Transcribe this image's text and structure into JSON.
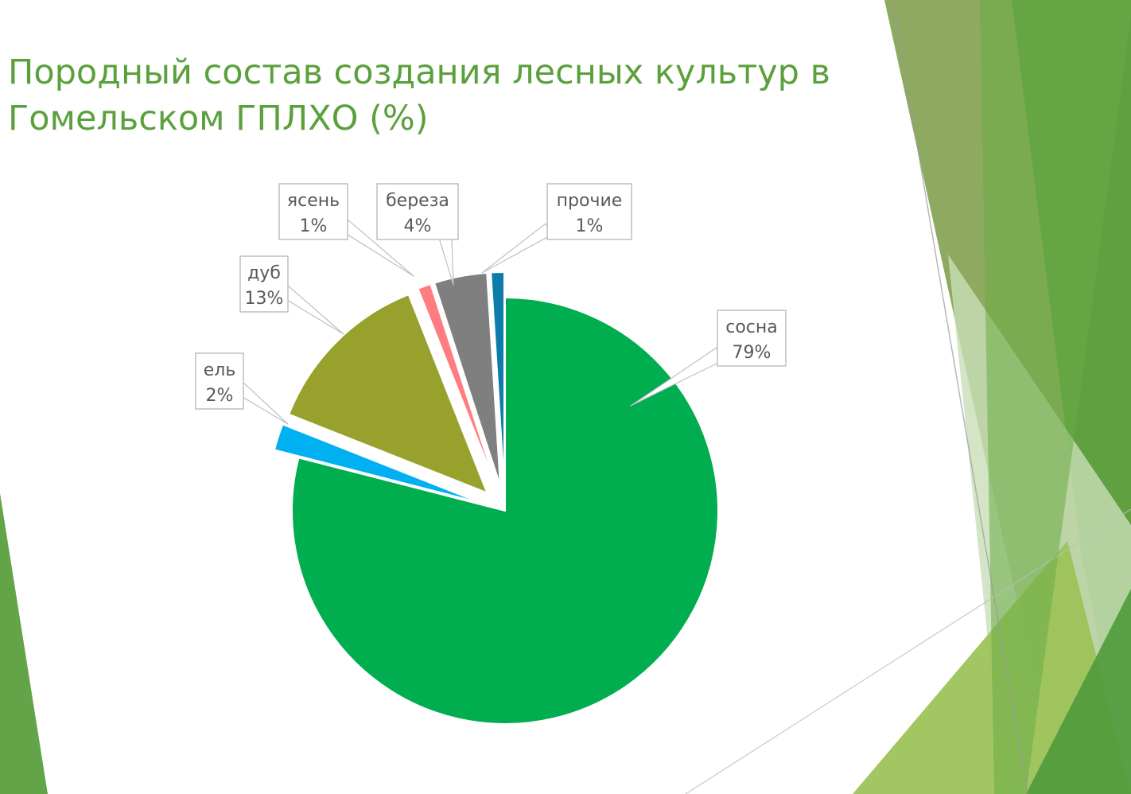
{
  "title": "Породный состав создания лесных культур в Гомельском ГПЛХО (%)",
  "chart_data": {
    "type": "pie",
    "title": "Породный состав создания лесных культур в Гомельском ГПЛХО (%)",
    "slices": [
      {
        "name": "сосна",
        "value": 79,
        "label": "79%",
        "color": "#00ad4f"
      },
      {
        "name": "ель",
        "value": 2,
        "label": "2%",
        "color": "#00b0f0"
      },
      {
        "name": "дуб",
        "value": 13,
        "label": "13%",
        "color": "#97a12c"
      },
      {
        "name": "ясень",
        "value": 1,
        "label": "1%",
        "color": "#ff7c80"
      },
      {
        "name": "береза",
        "value": 4,
        "label": "4%",
        "color": "#7f7f7f"
      },
      {
        "name": "прочие",
        "value": 1,
        "label": "1%",
        "color": "#0e7cab"
      }
    ],
    "start_angle": "12 o'clock, clockwise",
    "exploded": true,
    "legend": "none",
    "data_labels": "callouts with category name and percent"
  },
  "theme": {
    "title_color": "#5aa03c",
    "accent_green": "#5b9f3e",
    "olive_green": "#7a9b44",
    "light_green": "#9dc35a"
  }
}
